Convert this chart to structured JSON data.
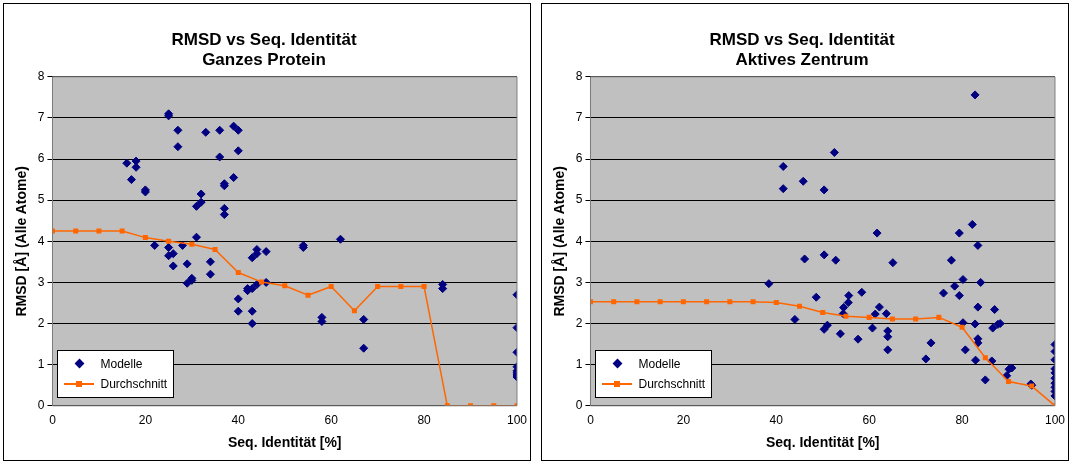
{
  "chart_data": [
    {
      "type": "scatter",
      "title": "RMSD vs Seq. Identität",
      "subtitle": "Ganzes Protein",
      "xlabel": "Seq. Identität [%]",
      "ylabel": "RMSD [Å] (Alle Atome)",
      "xlim": [
        0,
        100
      ],
      "xticks": [
        0,
        20,
        40,
        60,
        80,
        100
      ],
      "ylim": [
        0,
        8
      ],
      "yticks": [
        0,
        1,
        2,
        3,
        4,
        5,
        6,
        7,
        8
      ],
      "grid": "y",
      "legend": "bottom left",
      "series": [
        {
          "name": "Modelle",
          "type": "scatter",
          "marker": "diamond",
          "color": "#000080",
          "x": [
            16,
            17,
            18,
            18,
            20,
            20,
            22,
            25,
            25,
            25,
            25,
            26,
            26,
            27,
            27,
            28,
            29,
            29,
            30,
            30,
            31,
            31,
            32,
            32,
            33,
            34,
            34,
            36,
            36,
            37,
            37,
            37,
            37,
            39,
            39,
            40,
            40,
            40,
            40,
            42,
            42,
            43,
            43,
            43,
            43,
            44,
            44,
            44,
            46,
            46,
            54,
            54,
            58,
            58,
            62,
            67,
            67,
            84,
            84,
            100,
            100,
            100,
            100,
            100,
            100,
            100,
            100
          ],
          "values": [
            5.9,
            5.5,
            5.95,
            5.8,
            5.25,
            5.2,
            3.9,
            7.1,
            7.05,
            3.85,
            3.65,
            3.7,
            3.4,
            6.7,
            6.3,
            3.9,
            3.45,
            2.98,
            3.05,
            3.1,
            4.85,
            4.1,
            5.15,
            4.95,
            6.65,
            3.5,
            3.2,
            6.7,
            6.05,
            5.4,
            5.35,
            4.8,
            4.65,
            6.8,
            5.55,
            6.7,
            6.2,
            2.6,
            2.3,
            2.8,
            2.85,
            2.85,
            3.6,
            2.3,
            2.0,
            3.7,
            2.95,
            3.8,
            3.75,
            3.0,
            3.9,
            3.85,
            2.15,
            2.05,
            4.05,
            2.1,
            1.4,
            2.95,
            2.85,
            2.7,
            1.9,
            1.3,
            0.95,
            0.85,
            0.8,
            0.75,
            0.7
          ]
        },
        {
          "name": "Durchschnitt",
          "type": "line",
          "marker": "square",
          "color": "#ff6600",
          "x": [
            0,
            5,
            10,
            15,
            20,
            25,
            30,
            35,
            40,
            45,
            50,
            55,
            60,
            65,
            70,
            75,
            80,
            85,
            90,
            95,
            100
          ],
          "values": [
            4.25,
            4.25,
            4.25,
            4.25,
            4.09,
            4.0,
            3.93,
            3.8,
            3.24,
            3.01,
            2.92,
            2.69,
            2.9,
            2.31,
            2.9,
            2.9,
            2.9,
            0,
            0,
            0,
            0
          ]
        }
      ]
    },
    {
      "type": "scatter",
      "title": "RMSD vs Seq. Identität",
      "subtitle": "Aktives Zentrum",
      "xlabel": "Seq. Identität [%]",
      "ylabel": "RMSD [Å] (Alle Atome)",
      "xlim": [
        0,
        100
      ],
      "xticks": [
        0,
        20,
        40,
        60,
        80,
        100
      ],
      "ylim": [
        0,
        8
      ],
      "yticks": [
        0,
        1,
        2,
        3,
        4,
        5,
        6,
        7,
        8
      ],
      "grid": "y",
      "legend": "bottom left",
      "series": [
        {
          "name": "Modelle",
          "type": "scatter",
          "marker": "diamond",
          "color": "#000080",
          "x": [
            38.4,
            41.5,
            41.5,
            45.8,
            46.1,
            44.0,
            48.6,
            50.3,
            52.5,
            50.3,
            52.8,
            50.3,
            51.0,
            53.8,
            54.4,
            54.5,
            55.5,
            55.6,
            58.4,
            57.6,
            60.7,
            61.3,
            62.2,
            61.7,
            63.7,
            64.0,
            64.0,
            64.0,
            65.1,
            72.2,
            73.3,
            76.0,
            77.7,
            78.4,
            79.4,
            79.4,
            80.2,
            80.2,
            80.7,
            82.2,
            82.8,
            83.4,
            84.0,
            83.4,
            82.8,
            83.4,
            83.4,
            82.9,
            85.0,
            86.4,
            87.0,
            86.6,
            87.7,
            88.2,
            89.6,
            90.1,
            90.7,
            94.8,
            95.0,
            100,
            100,
            100,
            100,
            100,
            100,
            100,
            100,
            100,
            100
          ],
          "values": [
            2.97,
            5.82,
            5.28,
            5.46,
            3.57,
            2.1,
            2.64,
            5.25,
            6.16,
            3.67,
            3.54,
            1.86,
            1.96,
            1.75,
            2.24,
            2.39,
            2.51,
            2.68,
            2.76,
            1.62,
            1.89,
            2.23,
            2.4,
            4.2,
            2.24,
            1.82,
            1.68,
            1.36,
            3.48,
            1.14,
            1.53,
            2.74,
            3.54,
            2.91,
            4.2,
            2.68,
            3.07,
            2.02,
            1.36,
            4.41,
            7.56,
            3.9,
            3.0,
            2.4,
            1.99,
            1.63,
            1.53,
            1.11,
            0.63,
            1.09,
            2.34,
            1.89,
            1.98,
            2.0,
            0.73,
            0.89,
            0.92,
            0.53,
            0.5,
            1.49,
            1.32,
            1.12,
            0.9,
            0.8,
            0.67,
            0.55,
            0.45,
            0.35,
            0.24
          ]
        },
        {
          "name": "Durchschnitt",
          "type": "line",
          "marker": "square",
          "color": "#ff6600",
          "x": [
            0,
            5,
            10,
            15,
            20,
            25,
            30,
            35,
            40,
            45,
            50,
            55,
            60,
            65,
            70,
            75,
            80,
            85,
            90,
            95,
            100
          ],
          "values": [
            2.53,
            2.53,
            2.53,
            2.53,
            2.53,
            2.53,
            2.53,
            2.53,
            2.51,
            2.42,
            2.27,
            2.18,
            2.15,
            2.11,
            2.11,
            2.15,
            1.91,
            1.17,
            0.59,
            0.48,
            0
          ]
        }
      ]
    }
  ]
}
